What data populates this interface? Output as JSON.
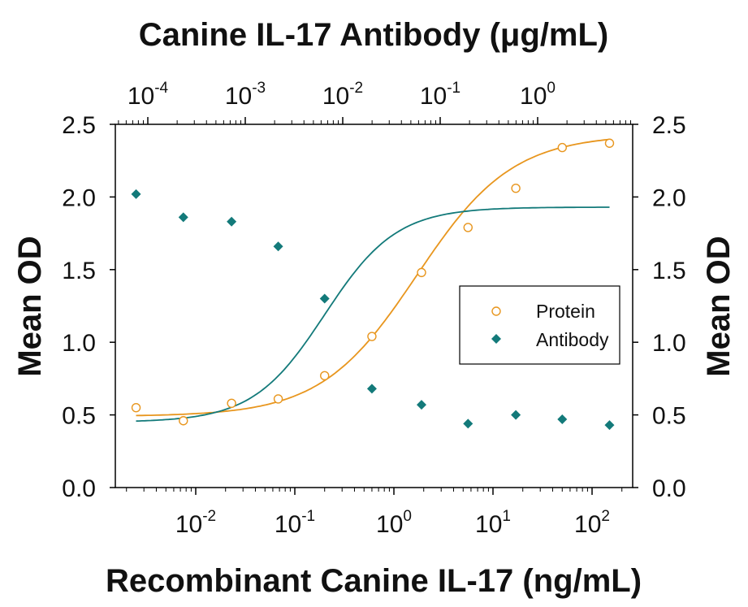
{
  "chart_data": {
    "type": "scatter",
    "title": "Canine IL-17 Antibody (μg/mL)",
    "xlabel": "Recombinant Canine IL-17 (ng/mL)",
    "ylabel": "Mean OD",
    "ylabel_right": "Mean OD",
    "x_scale": "log",
    "xlim": [
      0.001,
      300
    ],
    "ylim": [
      0.0,
      2.5
    ],
    "y_ticks": [
      "0.0",
      "0.5",
      "1.0",
      "1.5",
      "2.0",
      "2.5"
    ],
    "x_ticks_bottom": [
      {
        "value": 0.01,
        "base": "10",
        "exp": "-2"
      },
      {
        "value": 0.1,
        "base": "10",
        "exp": "-1"
      },
      {
        "value": 1,
        "base": "10",
        "exp": "0"
      },
      {
        "value": 10,
        "base": "10",
        "exp": "1"
      },
      {
        "value": 100,
        "base": "10",
        "exp": "2"
      }
    ],
    "top_axis": {
      "label": "Canine IL-17 Antibody (μg/mL)",
      "scale": "log",
      "xlim": [
        3e-05,
        10
      ],
      "ticks": [
        {
          "value": 0.0001,
          "base": "10",
          "exp": "-4"
        },
        {
          "value": 0.001,
          "base": "10",
          "exp": "-3"
        },
        {
          "value": 0.01,
          "base": "10",
          "exp": "-2"
        },
        {
          "value": 0.1,
          "base": "10",
          "exp": "-1"
        },
        {
          "value": 1,
          "base": "10",
          "exp": "0"
        }
      ]
    },
    "series": [
      {
        "name": "Protein",
        "marker": "open-circle",
        "color": "#e8961e",
        "axis": "bottom",
        "x": [
          0.0025,
          0.0075,
          0.023,
          0.068,
          0.2,
          0.6,
          1.9,
          5.6,
          17,
          50,
          150
        ],
        "y": [
          0.55,
          0.46,
          0.58,
          0.61,
          0.77,
          1.04,
          1.48,
          1.79,
          2.06,
          2.34,
          2.37
        ],
        "fit": {
          "bottom": 0.49,
          "top": 2.43,
          "ec50": 1.7,
          "hill": 0.9
        }
      },
      {
        "name": "Antibody",
        "marker": "filled-diamond",
        "color": "#137a7a",
        "axis": "bottom",
        "x": [
          0.0025,
          0.0075,
          0.023,
          0.068,
          0.2,
          0.6,
          1.9,
          5.6,
          17,
          50,
          150
        ],
        "y": [
          2.02,
          1.86,
          1.83,
          1.66,
          1.3,
          0.68,
          0.57,
          0.44,
          0.5,
          0.47,
          0.43
        ],
        "fit": {
          "bottom": 0.45,
          "top": 1.93,
          "ec50": 0.2,
          "hill": 1.2
        }
      }
    ],
    "legend": {
      "position": "right-center",
      "entries": [
        "Protein",
        "Antibody"
      ]
    },
    "grid": false
  }
}
